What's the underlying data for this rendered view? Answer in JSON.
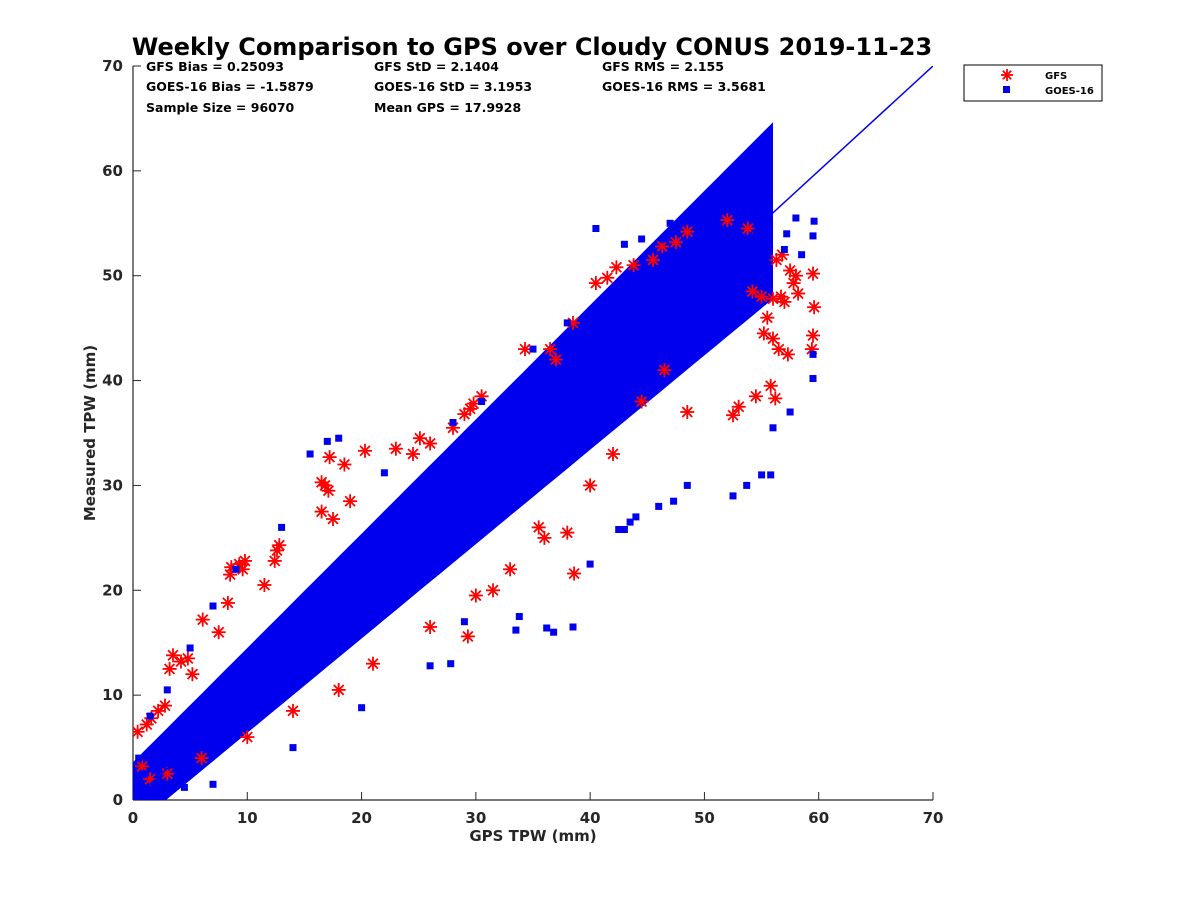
{
  "chart_data": {
    "type": "scatter",
    "title": "Weekly Comparison to GPS over Cloudy CONUS 2019-11-23",
    "xlabel": "GPS TPW (mm)",
    "ylabel": "Measured TPW (mm)",
    "xlim": [
      0,
      70
    ],
    "ylim": [
      0,
      70
    ],
    "xticks": [
      "0",
      "10",
      "20",
      "30",
      "40",
      "50",
      "60",
      "70"
    ],
    "yticks": [
      "0",
      "10",
      "20",
      "30",
      "40",
      "50",
      "60",
      "70"
    ],
    "grid": false,
    "legend_position": "outside-top-right",
    "stats": [
      "GFS Bias = 0.25093",
      "GOES-16 Bias = -1.5879",
      "Sample Size = 96070",
      "GFS StD = 2.1404",
      "GOES-16 StD = 3.1953",
      "Mean GPS = 17.9928",
      "GFS RMS = 2.155",
      "GOES-16 RMS = 3.5681"
    ],
    "reference_line": {
      "x": [
        0,
        70
      ],
      "y": [
        0,
        70
      ],
      "color": "#0000ee"
    },
    "series": [
      {
        "name": "GFS",
        "marker": "asterisk",
        "color": "#ff0000",
        "points": [
          [
            0.4,
            6.5
          ],
          [
            0.8,
            3.2
          ],
          [
            1.2,
            7.2
          ],
          [
            1.6,
            7.8
          ],
          [
            2.2,
            8.5
          ],
          [
            2.8,
            9.0
          ],
          [
            3.2,
            12.5
          ],
          [
            3.5,
            13.8
          ],
          [
            4.2,
            13.2
          ],
          [
            4.8,
            13.5
          ],
          [
            5.2,
            12.0
          ],
          [
            6.1,
            17.2
          ],
          [
            7.5,
            16.0
          ],
          [
            8.3,
            18.8
          ],
          [
            8.5,
            21.5
          ],
          [
            8.6,
            22.2
          ],
          [
            9.3,
            22.5
          ],
          [
            9.8,
            22.8
          ],
          [
            9.6,
            22.0
          ],
          [
            12.4,
            22.8
          ],
          [
            12.6,
            23.8
          ],
          [
            12.8,
            24.3
          ],
          [
            11.5,
            20.5
          ],
          [
            16.5,
            30.3
          ],
          [
            16.8,
            30.0
          ],
          [
            17.1,
            29.5
          ],
          [
            17.2,
            32.7
          ],
          [
            18.5,
            32.0
          ],
          [
            16.5,
            27.5
          ],
          [
            17.5,
            26.8
          ],
          [
            20.3,
            33.3
          ],
          [
            19.0,
            28.5
          ],
          [
            23.0,
            33.5
          ],
          [
            25.1,
            34.5
          ],
          [
            24.5,
            33.0
          ],
          [
            26.0,
            34.0
          ],
          [
            28.0,
            35.5
          ],
          [
            29.0,
            36.8
          ],
          [
            29.5,
            37.3
          ],
          [
            29.8,
            37.8
          ],
          [
            30.5,
            38.5
          ],
          [
            29.3,
            15.6
          ],
          [
            34.3,
            43.0
          ],
          [
            36.5,
            43.0
          ],
          [
            37.0,
            42.0
          ],
          [
            38.6,
            21.6
          ],
          [
            36.0,
            25.0
          ],
          [
            38.0,
            25.5
          ],
          [
            38.5,
            45.5
          ],
          [
            40.5,
            49.3
          ],
          [
            41.5,
            49.8
          ],
          [
            42.3,
            50.8
          ],
          [
            43.8,
            51.0
          ],
          [
            45.5,
            51.5
          ],
          [
            46.3,
            52.8
          ],
          [
            47.5,
            53.2
          ],
          [
            48.5,
            54.2
          ],
          [
            52.0,
            55.3
          ],
          [
            53.8,
            54.5
          ],
          [
            54.2,
            48.5
          ],
          [
            55.0,
            48.0
          ],
          [
            56.0,
            47.8
          ],
          [
            56.7,
            48.0
          ],
          [
            57.0,
            47.5
          ],
          [
            57.5,
            50.5
          ],
          [
            58.0,
            50.0
          ],
          [
            57.8,
            49.3
          ],
          [
            58.2,
            48.3
          ],
          [
            59.5,
            50.2
          ],
          [
            59.6,
            47.0
          ],
          [
            59.5,
            44.3
          ],
          [
            59.4,
            43.0
          ],
          [
            56.3,
            51.5
          ],
          [
            56.8,
            52.0
          ],
          [
            55.5,
            46.0
          ],
          [
            55.2,
            44.5
          ],
          [
            56.0,
            44.0
          ],
          [
            56.5,
            43.0
          ],
          [
            57.3,
            42.5
          ],
          [
            55.8,
            39.5
          ],
          [
            56.2,
            38.3
          ],
          [
            54.5,
            38.5
          ],
          [
            53.0,
            37.5
          ],
          [
            52.5,
            36.7
          ],
          [
            48.5,
            37.0
          ],
          [
            46.5,
            41.0
          ],
          [
            44.5,
            38.0
          ],
          [
            42.0,
            33.0
          ],
          [
            40.0,
            30.0
          ],
          [
            35.5,
            26.0
          ],
          [
            33.0,
            22.0
          ],
          [
            31.5,
            20.0
          ],
          [
            30.0,
            19.5
          ],
          [
            26.0,
            16.5
          ],
          [
            21.0,
            13.0
          ],
          [
            18.0,
            10.5
          ],
          [
            14.0,
            8.5
          ],
          [
            10.0,
            6.0
          ],
          [
            6.0,
            4.0
          ],
          [
            3.0,
            2.5
          ],
          [
            1.5,
            2.0
          ]
        ]
      },
      {
        "name": "GOES-16",
        "marker": "square",
        "color": "#0000ee",
        "points": [
          [
            0.5,
            4.0
          ],
          [
            1.0,
            2.5
          ],
          [
            2.0,
            1.5
          ],
          [
            4.5,
            1.2
          ],
          [
            7.0,
            1.5
          ],
          [
            14.0,
            5.0
          ],
          [
            20.0,
            8.8
          ],
          [
            26.0,
            12.8
          ],
          [
            27.8,
            13.0
          ],
          [
            29.0,
            17.0
          ],
          [
            33.8,
            17.5
          ],
          [
            33.5,
            16.2
          ],
          [
            36.2,
            16.4
          ],
          [
            36.8,
            16.0
          ],
          [
            38.5,
            16.5
          ],
          [
            40.0,
            22.5
          ],
          [
            42.5,
            25.8
          ],
          [
            43.0,
            25.8
          ],
          [
            43.5,
            26.5
          ],
          [
            44.0,
            27.0
          ],
          [
            46.0,
            28.0
          ],
          [
            47.3,
            28.5
          ],
          [
            48.5,
            30.0
          ],
          [
            52.5,
            29.0
          ],
          [
            53.7,
            30.0
          ],
          [
            55.0,
            31.0
          ],
          [
            55.8,
            31.0
          ],
          [
            56.0,
            35.5
          ],
          [
            57.5,
            37.0
          ],
          [
            59.5,
            40.2
          ],
          [
            59.5,
            42.5
          ],
          [
            59.5,
            53.8
          ],
          [
            59.6,
            55.2
          ],
          [
            58.0,
            55.5
          ],
          [
            57.2,
            54.0
          ],
          [
            57.0,
            52.5
          ],
          [
            58.5,
            52.0
          ],
          [
            54.0,
            56.0
          ],
          [
            53.0,
            55.2
          ],
          [
            50.0,
            56.0
          ],
          [
            48.5,
            55.5
          ],
          [
            47.0,
            55.0
          ],
          [
            46.5,
            53.5
          ],
          [
            44.5,
            53.5
          ],
          [
            43.0,
            53.0
          ],
          [
            40.5,
            54.5
          ],
          [
            38.0,
            45.5
          ],
          [
            35.0,
            43.0
          ],
          [
            30.5,
            38.0
          ],
          [
            28.0,
            36.0
          ],
          [
            22.0,
            31.2
          ],
          [
            18.0,
            34.5
          ],
          [
            17.0,
            34.2
          ],
          [
            15.5,
            33.0
          ],
          [
            13.0,
            26.0
          ],
          [
            9.0,
            22.0
          ],
          [
            7.0,
            18.5
          ],
          [
            5.0,
            14.5
          ],
          [
            3.0,
            10.5
          ],
          [
            1.5,
            8.0
          ]
        ]
      }
    ]
  }
}
